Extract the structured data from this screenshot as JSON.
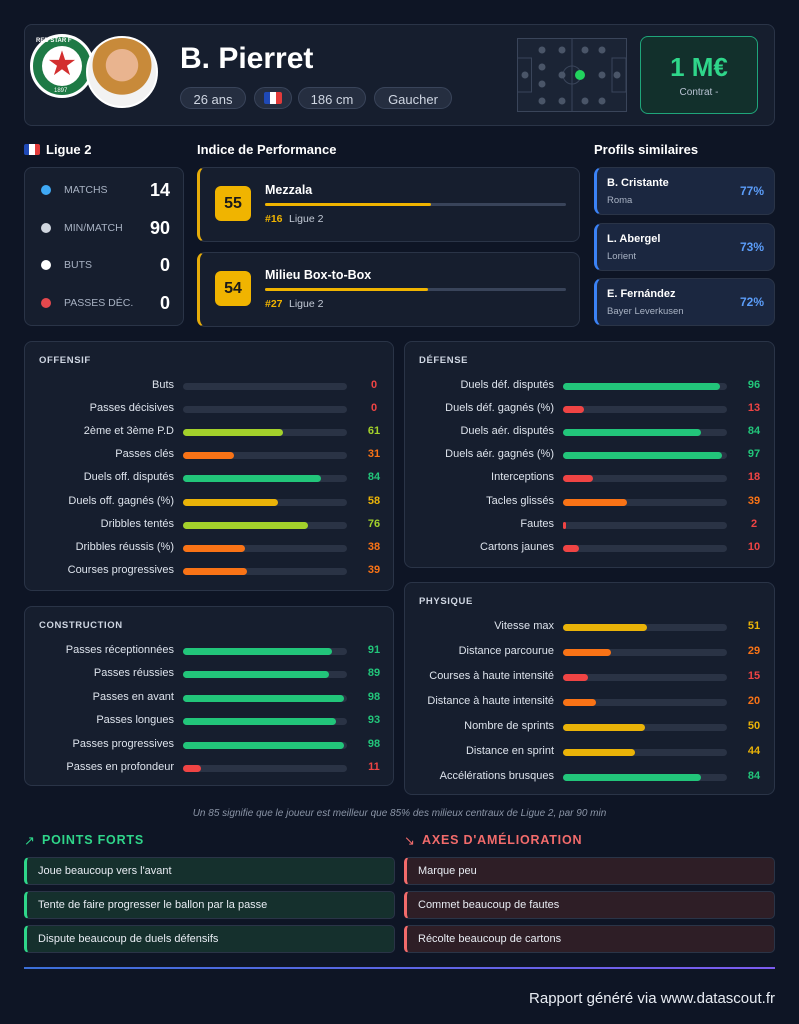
{
  "header": {
    "badge_text": "RED STAR F",
    "badge_year": "1897",
    "name": "B. Pierret",
    "age": "26 ans",
    "height": "186 cm",
    "foot": "Gaucher",
    "value": "1 M€",
    "contract": "Contrat -"
  },
  "league": {
    "name": "Ligue 2",
    "stats": [
      {
        "label": "MATCHS",
        "value": 14
      },
      {
        "label": "MIN/MATCH",
        "value": 90
      },
      {
        "label": "BUTS",
        "value": 0
      },
      {
        "label": "PASSES DÉC.",
        "value": 0
      }
    ]
  },
  "performance": {
    "title": "Indice de Performance",
    "roles": [
      {
        "score": 55,
        "name": "Mezzala",
        "rank": "#16",
        "league": "Ligue 2"
      },
      {
        "score": 54,
        "name": "Milieu Box-to-Box",
        "rank": "#27",
        "league": "Ligue 2"
      }
    ]
  },
  "similar": {
    "title": "Profils similaires",
    "players": [
      {
        "name": "B. Cristante",
        "club": "Roma",
        "match": "77%"
      },
      {
        "name": "L. Abergel",
        "club": "Lorient",
        "match": "73%"
      },
      {
        "name": "E. Fernández",
        "club": "Bayer Leverkusen",
        "match": "72%"
      }
    ]
  },
  "sections": [
    {
      "title": "OFFENSIF",
      "metrics": [
        {
          "label": "Buts",
          "value": 0
        },
        {
          "label": "Passes décisives",
          "value": 0
        },
        {
          "label": "2ème et 3ème P.D",
          "value": 61
        },
        {
          "label": "Passes clés",
          "value": 31
        },
        {
          "label": "Duels off. disputés",
          "value": 84
        },
        {
          "label": "Duels off. gagnés (%)",
          "value": 58
        },
        {
          "label": "Dribbles tentés",
          "value": 76
        },
        {
          "label": "Dribbles réussis (%)",
          "value": 38
        },
        {
          "label": "Courses progressives",
          "value": 39
        }
      ]
    },
    {
      "title": "CONSTRUCTION",
      "metrics": [
        {
          "label": "Passes réceptionnées",
          "value": 91
        },
        {
          "label": "Passes réussies",
          "value": 89
        },
        {
          "label": "Passes en avant",
          "value": 98
        },
        {
          "label": "Passes longues",
          "value": 93
        },
        {
          "label": "Passes progressives",
          "value": 98
        },
        {
          "label": "Passes en profondeur",
          "value": 11
        }
      ]
    },
    {
      "title": "DÉFENSE",
      "metrics": [
        {
          "label": "Duels déf. disputés",
          "value": 96
        },
        {
          "label": "Duels déf. gagnés (%)",
          "value": 13
        },
        {
          "label": "Duels aér. disputés",
          "value": 84
        },
        {
          "label": "Duels aér. gagnés (%)",
          "value": 97
        },
        {
          "label": "Interceptions",
          "value": 18
        },
        {
          "label": "Tacles glissés",
          "value": 39
        },
        {
          "label": "Fautes",
          "value": 2
        },
        {
          "label": "Cartons jaunes",
          "value": 10
        }
      ]
    },
    {
      "title": "PHYSIQUE",
      "metrics": [
        {
          "label": "Vitesse max",
          "value": 51
        },
        {
          "label": "Distance parcourue",
          "value": 29
        },
        {
          "label": "Courses à haute intensité",
          "value": 15
        },
        {
          "label": "Distance à haute intensité",
          "value": 20
        },
        {
          "label": "Nombre de sprints",
          "value": 50
        },
        {
          "label": "Distance en sprint",
          "value": 44
        },
        {
          "label": "Accélérations brusques",
          "value": 84
        }
      ]
    }
  ],
  "note": "Un 85 signifie que le joueur est meilleur que 85% des milieux centraux de Ligue 2, par 90 min",
  "strengths": {
    "title": "POINTS FORTS",
    "items": [
      "Joue beaucoup vers l'avant",
      "Tente de faire progresser le ballon par la passe",
      "Dispute beaucoup de duels défensifs"
    ]
  },
  "weaknesses": {
    "title": "AXES D'AMÉLIORATION",
    "items": [
      "Marque peu",
      "Commet beaucoup de fautes",
      "Récolte beaucoup de cartons"
    ]
  },
  "footer": "Rapport généré via www.datascout.fr"
}
